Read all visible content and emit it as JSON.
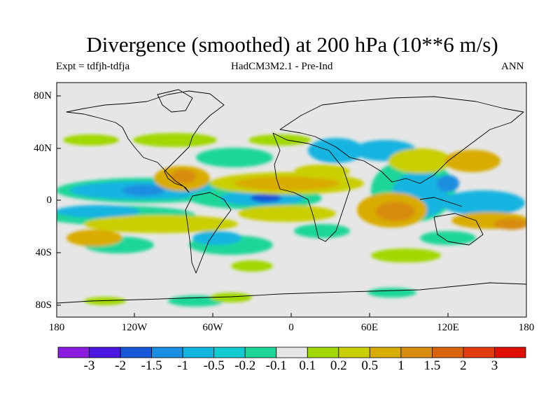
{
  "title": "Divergence (smoothed) at 200 hPa (10**6 m/s)",
  "subtitle": {
    "left": "Expt = tdfjh-tdfja",
    "center": "HadCM3M2.1 - Pre-Ind",
    "right": "ANN"
  },
  "map": {
    "projection": "cylindrical equidistant",
    "lon_range": [
      -180,
      180
    ],
    "lat_range": [
      -90,
      90
    ],
    "background_color": "#e6e6e6",
    "y_ticks": [
      "80N",
      "40N",
      "0",
      "40S",
      "80S"
    ],
    "x_ticks": [
      "180",
      "120W",
      "60W",
      "0",
      "60E",
      "120E",
      "180"
    ]
  },
  "colorbar": {
    "labels": [
      "-3",
      "-2",
      "-1.5",
      "-1",
      "-0.5",
      "-0.2",
      "-0.1",
      "0.1",
      "0.2",
      "0.5",
      "1",
      "1.5",
      "2",
      "3"
    ],
    "colors": [
      "#8a1ce0",
      "#4b16e0",
      "#1658d8",
      "#1a8ee0",
      "#12b4e0",
      "#14cad2",
      "#1ed699",
      "#e6e6e6",
      "#a0d800",
      "#c9cf00",
      "#d8ac00",
      "#d88c10",
      "#d86410",
      "#e23c10",
      "#e01000"
    ]
  }
}
